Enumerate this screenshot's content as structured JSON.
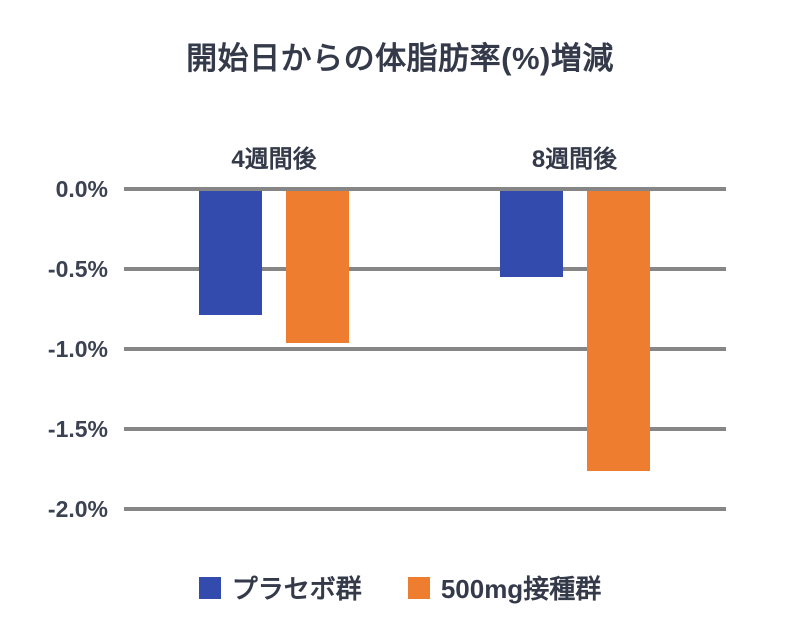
{
  "title": "開始日からの体脂肪率(%)増減",
  "chart_data": {
    "type": "bar",
    "categories": [
      "4週間後",
      "8週間後"
    ],
    "series": [
      {
        "name": "プラセボ群",
        "color": "#324bad",
        "values": [
          -0.79,
          -0.55
        ]
      },
      {
        "name": "500mg接種群",
        "color": "#ee7d2f",
        "values": [
          -0.96,
          -1.76
        ]
      }
    ],
    "y_ticks": [
      "0.0%",
      "-0.5%",
      "-1.0%",
      "-1.5%",
      "-2.0%"
    ],
    "ylim": [
      -2.0,
      0.0
    ],
    "grid": true,
    "gridline_color": "#868686",
    "background_color": "#ffffff",
    "text_color": "#343a49",
    "legend_position": "bottom"
  }
}
